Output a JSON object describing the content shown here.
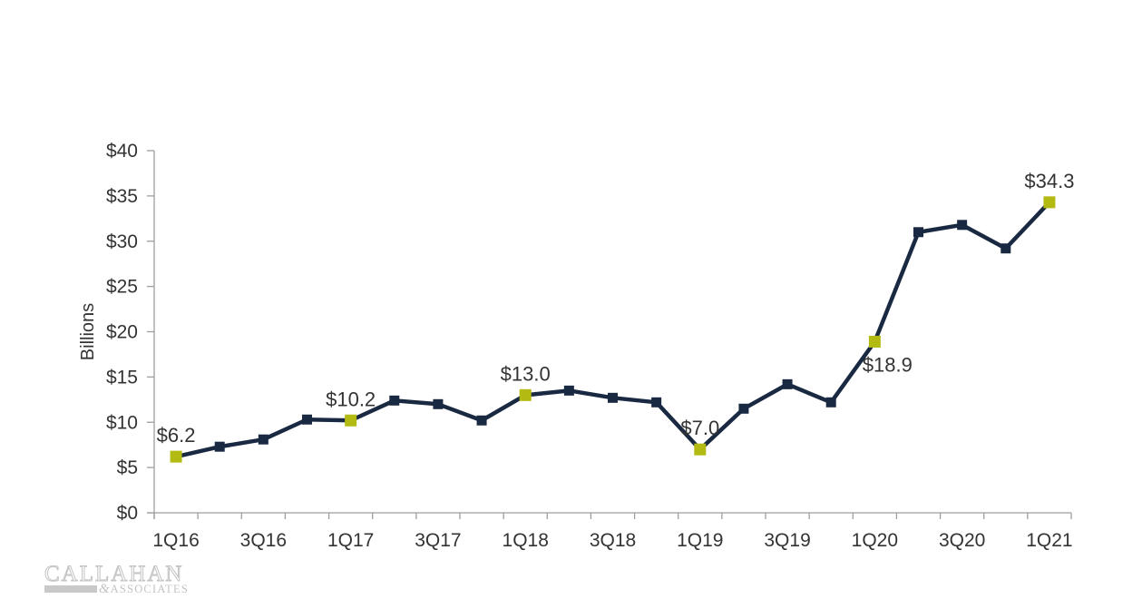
{
  "chart_data": {
    "type": "line",
    "title": "",
    "xlabel": "",
    "ylabel": "Billions",
    "categories": [
      "1Q16",
      "2Q16",
      "3Q16",
      "4Q16",
      "1Q17",
      "2Q17",
      "3Q17",
      "4Q17",
      "1Q18",
      "2Q18",
      "3Q18",
      "4Q18",
      "1Q19",
      "2Q19",
      "3Q19",
      "4Q19",
      "1Q20",
      "2Q20",
      "3Q20",
      "4Q20",
      "1Q21"
    ],
    "values": [
      6.2,
      7.3,
      8.1,
      10.3,
      10.2,
      12.4,
      12.0,
      10.2,
      13.0,
      13.5,
      12.7,
      12.2,
      7.0,
      11.5,
      14.2,
      12.2,
      18.9,
      31.0,
      31.8,
      29.2,
      34.3
    ],
    "ylim": [
      0,
      40
    ],
    "ytick_step": 5,
    "ytick_labels": [
      "$0",
      "$5",
      "$10",
      "$15",
      "$20",
      "$25",
      "$30",
      "$35",
      "$40"
    ],
    "xtick_labels": [
      "1Q16",
      "3Q16",
      "1Q17",
      "3Q17",
      "1Q18",
      "3Q18",
      "1Q19",
      "3Q19",
      "1Q20",
      "3Q20",
      "1Q21"
    ],
    "xtick_label_every": 2,
    "grid": false,
    "legend": "none",
    "annotated_points": [
      {
        "category": "1Q16",
        "index": 0,
        "label": "$6.2",
        "position": "above"
      },
      {
        "category": "1Q17",
        "index": 4,
        "label": "$10.2",
        "position": "above"
      },
      {
        "category": "1Q18",
        "index": 8,
        "label": "$13.0",
        "position": "above"
      },
      {
        "category": "1Q19",
        "index": 12,
        "label": "$7.0",
        "position": "above"
      },
      {
        "category": "1Q20",
        "index": 16,
        "label": "$18.9",
        "position": "below"
      },
      {
        "category": "1Q21",
        "index": 20,
        "label": "$34.3",
        "position": "above"
      }
    ],
    "colors": {
      "line": "#1a2942",
      "marker": "#1a2942",
      "highlight_marker": "#b3ba12",
      "axis": "#9e9e9e",
      "tick_text": "#333333",
      "data_label_text": "#333333"
    }
  },
  "logo": {
    "name": "CALLAHAN",
    "ampersand": "&",
    "subtext": "ASSOCIATES",
    "color": "#c3c3c3"
  }
}
